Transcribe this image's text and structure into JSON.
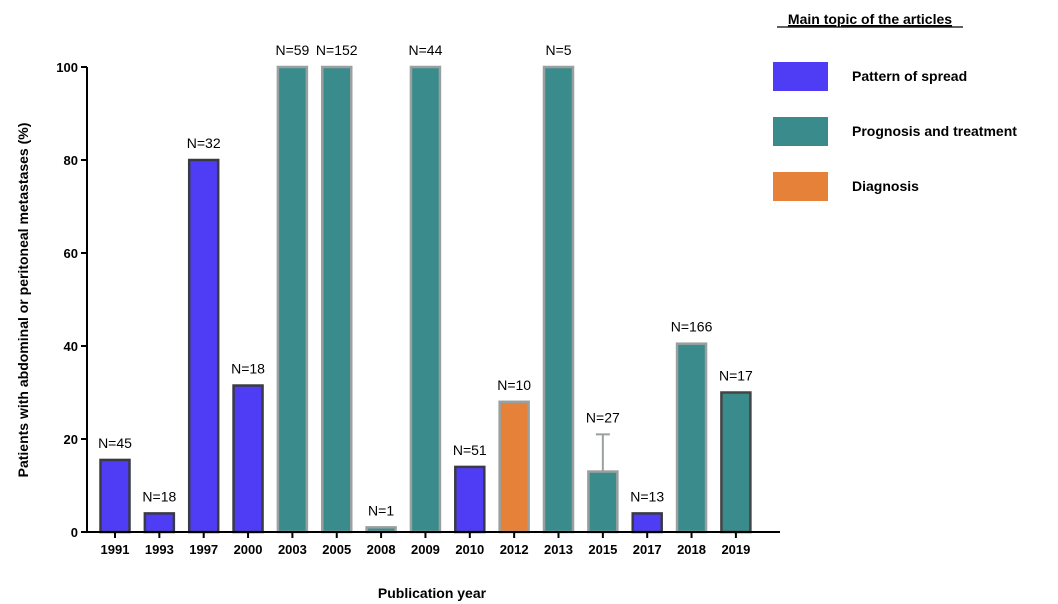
{
  "chart_data": {
    "type": "bar",
    "xlabel": "Publication year",
    "ylabel": "Patients with abdominal or peritoneal metastases (%)",
    "ylim": [
      0,
      100
    ],
    "yticks": [
      0,
      20,
      40,
      60,
      80,
      100
    ],
    "grid": false,
    "categories": [
      "1991",
      "1993",
      "1997",
      "2000",
      "2003",
      "2005",
      "2008",
      "2009",
      "2010",
      "2012",
      "2013",
      "2015",
      "2017",
      "2018",
      "2019"
    ],
    "values": [
      15.5,
      4,
      80,
      31.5,
      100,
      100,
      1,
      100,
      14,
      28,
      100,
      13,
      4,
      40.5,
      30
    ],
    "labels": [
      "N=45",
      "N=18",
      "N=32",
      "N=18",
      "N=59",
      "N=152",
      "N=1",
      "N=44",
      "N=51",
      "N=10",
      "N=5",
      "N=27",
      "N=13",
      "N=166",
      "N=17"
    ],
    "topics": [
      "pattern",
      "pattern",
      "pattern",
      "pattern",
      "prognosis",
      "prognosis",
      "prognosis",
      "prognosis",
      "pattern",
      "diagnosis",
      "prognosis",
      "prognosis",
      "pattern",
      "prognosis",
      "prognosis"
    ],
    "error_bars": [
      null,
      null,
      null,
      null,
      null,
      null,
      null,
      null,
      null,
      null,
      null,
      {
        "high": 21
      },
      null,
      null,
      null
    ],
    "legend": {
      "title": "Main topic of the articles",
      "placement": "top-right",
      "entries": [
        {
          "key": "pattern",
          "name": "Pattern of spread",
          "color": "#4f3df5"
        },
        {
          "key": "prognosis",
          "name": "Prognosis and treatment",
          "color": "#3a8b8c"
        },
        {
          "key": "diagnosis",
          "name": "Diagnosis",
          "color": "#e58139"
        }
      ]
    }
  }
}
